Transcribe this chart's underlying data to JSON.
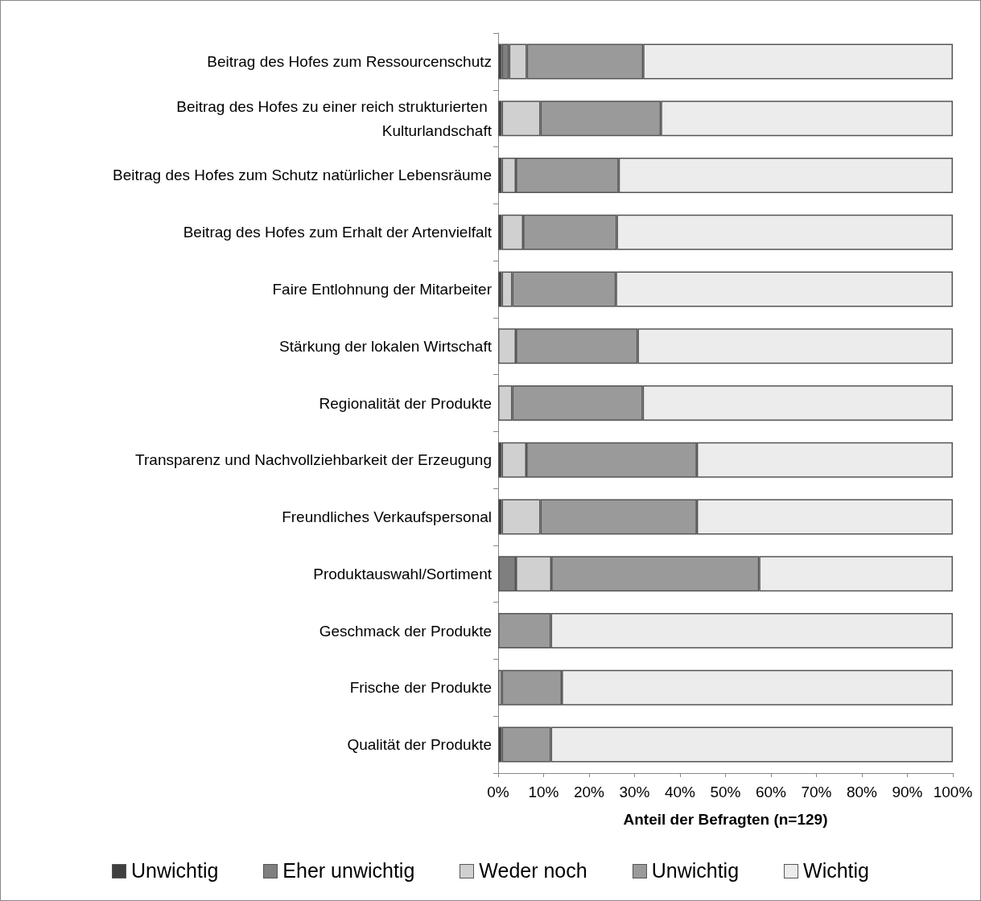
{
  "chart_data": {
    "type": "bar",
    "orientation": "horizontal",
    "stacked": true,
    "xlabel": "Anteil der Befragten (n=129)",
    "categories": [
      "Beitrag des Hofes zum Ressourcenschutz",
      "Beitrag des Hofes zu einer reich strukturierten Kulturlandschaft",
      "Beitrag des Hofes zum Schutz natürlicher Lebensräume",
      "Beitrag des Hofes zum Erhalt der Artenvielfalt",
      "Faire Entlohnung der Mitarbeiter",
      "Stärkung der lokalen Wirtschaft",
      "Regionalität der Produkte",
      "Transparenz und Nachvollziehbarkeit der Erzeugung",
      "Freundliches Verkaufspersonal",
      "Produktauswahl/Sortiment",
      "Geschmack der Produkte",
      "Frische der Produkte",
      "Qualität der Produkte"
    ],
    "series": [
      {
        "name": "Unwichtig",
        "color": "#3f3f3f",
        "values": [
          0.8,
          0.8,
          0.8,
          0.8,
          0.8,
          0,
          0,
          0.8,
          0.8,
          0,
          0,
          0,
          0.8
        ]
      },
      {
        "name": "Eher unwichtig",
        "color": "#7f7f7f",
        "values": [
          1.6,
          0,
          0,
          0,
          0,
          0,
          0,
          0,
          0,
          3.9,
          0,
          0,
          0
        ]
      },
      {
        "name": "Weder noch",
        "color": "#d0d0d0",
        "values": [
          3.9,
          8.5,
          3.1,
          4.7,
          2.3,
          3.9,
          3.1,
          5.4,
          8.5,
          7.8,
          0,
          0.8,
          0
        ]
      },
      {
        "name": "Unwichtig",
        "color": "#9a9a9a",
        "values": [
          25.6,
          26.5,
          22.6,
          20.6,
          22.8,
          26.8,
          28.7,
          37.5,
          34.4,
          45.7,
          11.6,
          13.2,
          10.8
        ]
      },
      {
        "name": "Wichtig",
        "color": "#ececec",
        "values": [
          68.1,
          64.2,
          73.5,
          73.9,
          74.1,
          69.3,
          68.2,
          56.3,
          56.3,
          42.6,
          88.4,
          86.0,
          88.4
        ]
      }
    ],
    "xlim": [
      0,
      100
    ],
    "xticks": [
      {
        "value": 0,
        "label": "0%"
      },
      {
        "value": 10,
        "label": "10%"
      },
      {
        "value": 20,
        "label": "20%"
      },
      {
        "value": 30,
        "label": "30%"
      },
      {
        "value": 40,
        "label": "40%"
      },
      {
        "value": 50,
        "label": "50%"
      },
      {
        "value": 60,
        "label": "60%"
      },
      {
        "value": 70,
        "label": "70%"
      },
      {
        "value": 80,
        "label": "80%"
      },
      {
        "value": 90,
        "label": "90%"
      },
      {
        "value": 100,
        "label": "100%"
      }
    ],
    "legend": "bottom",
    "grid": false
  }
}
